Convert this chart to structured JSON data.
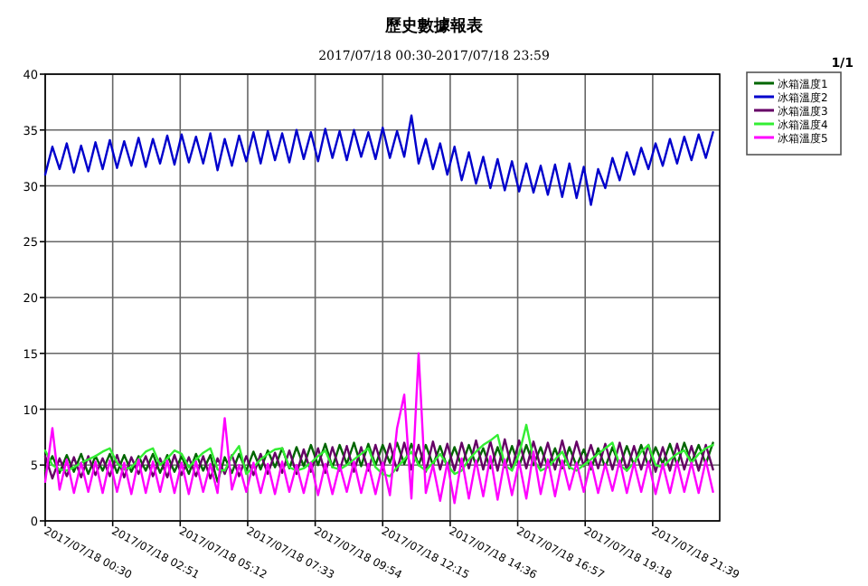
{
  "chart_data": {
    "type": "line",
    "title": "歷史數據報表",
    "subtitle": "2017/07/18 00:30-2017/07/18 23:59",
    "annotations": [
      "1/1"
    ],
    "xlim": [
      "2017-07-18T00:30",
      "2017-07-18T23:59"
    ],
    "xticks": [
      {
        "value": "2017-07-18T00:30",
        "label": "2017/07/18 00:30"
      },
      {
        "value": "2017-07-18T02:51",
        "label": "2017/07/18 02:51"
      },
      {
        "value": "2017-07-18T05:12",
        "label": "2017/07/18 05:12"
      },
      {
        "value": "2017-07-18T07:33",
        "label": "2017/07/18 07:33"
      },
      {
        "value": "2017-07-18T09:54",
        "label": "2017/07/18 09:54"
      },
      {
        "value": "2017-07-18T12:15",
        "label": "2017/07/18 12:15"
      },
      {
        "value": "2017-07-18T14:36",
        "label": "2017/07/18 14:36"
      },
      {
        "value": "2017-07-18T16:57",
        "label": "2017/07/18 16:57"
      },
      {
        "value": "2017-07-18T19:18",
        "label": "2017/07/18 19:18"
      },
      {
        "value": "2017-07-18T21:39",
        "label": "2017/07/18 21:39"
      }
    ],
    "ylim": [
      0,
      40
    ],
    "yticks": [
      0,
      5,
      10,
      15,
      20,
      25,
      30,
      35,
      40
    ],
    "grid": true,
    "legend": "right",
    "x": [
      "2017-07-18T00:30",
      "2017-07-18T00:45",
      "2017-07-18T01:00",
      "2017-07-18T01:15",
      "2017-07-18T01:30",
      "2017-07-18T01:45",
      "2017-07-18T02:00",
      "2017-07-18T02:15",
      "2017-07-18T02:30",
      "2017-07-18T02:45",
      "2017-07-18T03:00",
      "2017-07-18T03:15",
      "2017-07-18T03:30",
      "2017-07-18T03:45",
      "2017-07-18T04:00",
      "2017-07-18T04:15",
      "2017-07-18T04:30",
      "2017-07-18T04:45",
      "2017-07-18T05:00",
      "2017-07-18T05:15",
      "2017-07-18T05:30",
      "2017-07-18T05:45",
      "2017-07-18T06:00",
      "2017-07-18T06:15",
      "2017-07-18T06:30",
      "2017-07-18T06:45",
      "2017-07-18T07:00",
      "2017-07-18T07:15",
      "2017-07-18T07:30",
      "2017-07-18T07:45",
      "2017-07-18T08:00",
      "2017-07-18T08:15",
      "2017-07-18T08:30",
      "2017-07-18T08:45",
      "2017-07-18T09:00",
      "2017-07-18T09:15",
      "2017-07-18T09:30",
      "2017-07-18T09:45",
      "2017-07-18T10:00",
      "2017-07-18T10:15",
      "2017-07-18T10:30",
      "2017-07-18T10:45",
      "2017-07-18T11:00",
      "2017-07-18T11:15",
      "2017-07-18T11:30",
      "2017-07-18T11:45",
      "2017-07-18T12:00",
      "2017-07-18T12:15",
      "2017-07-18T12:30",
      "2017-07-18T12:45",
      "2017-07-18T13:00",
      "2017-07-18T13:15",
      "2017-07-18T13:30",
      "2017-07-18T13:45",
      "2017-07-18T14:00",
      "2017-07-18T14:15",
      "2017-07-18T14:30",
      "2017-07-18T14:45",
      "2017-07-18T15:00",
      "2017-07-18T15:15",
      "2017-07-18T15:30",
      "2017-07-18T15:45",
      "2017-07-18T16:00",
      "2017-07-18T16:15",
      "2017-07-18T16:30",
      "2017-07-18T16:45",
      "2017-07-18T17:00",
      "2017-07-18T17:15",
      "2017-07-18T17:30",
      "2017-07-18T17:45",
      "2017-07-18T18:00",
      "2017-07-18T18:15",
      "2017-07-18T18:30",
      "2017-07-18T18:45",
      "2017-07-18T19:00",
      "2017-07-18T19:15",
      "2017-07-18T19:30",
      "2017-07-18T19:45",
      "2017-07-18T20:00",
      "2017-07-18T20:15",
      "2017-07-18T20:30",
      "2017-07-18T20:45",
      "2017-07-18T21:00",
      "2017-07-18T21:15",
      "2017-07-18T21:30",
      "2017-07-18T21:45",
      "2017-07-18T22:00",
      "2017-07-18T22:15",
      "2017-07-18T22:30",
      "2017-07-18T22:45",
      "2017-07-18T23:00",
      "2017-07-18T23:15",
      "2017-07-18T23:30",
      "2017-07-18T23:45"
    ],
    "series": [
      {
        "name": "冰箱溫度1",
        "color": "#006600",
        "values": [
          4.5,
          5.8,
          4.3,
          5.9,
          4.4,
          6.0,
          4.2,
          5.8,
          4.5,
          6.0,
          4.3,
          5.9,
          4.4,
          5.8,
          4.5,
          6.0,
          4.3,
          5.9,
          4.4,
          5.8,
          4.2,
          6.0,
          4.5,
          5.9,
          3.5,
          5.7,
          4.3,
          6.0,
          4.5,
          6.2,
          4.6,
          6.3,
          4.8,
          6.5,
          4.7,
          6.6,
          4.9,
          6.8,
          5.0,
          6.9,
          4.8,
          6.8,
          5.1,
          7.0,
          4.9,
          6.9,
          5.0,
          6.8,
          5.2,
          7.0,
          5.1,
          6.9,
          5.0,
          6.8,
          5.0,
          6.7,
          4.8,
          6.6,
          4.9,
          6.8,
          5.0,
          6.5,
          4.7,
          6.6,
          4.8,
          6.7,
          4.9,
          6.8,
          5.0,
          6.6,
          4.8,
          6.5,
          4.7,
          6.6,
          4.9,
          6.4,
          4.6,
          6.5,
          4.8,
          6.6,
          4.9,
          6.7,
          5.0,
          6.8,
          4.9,
          6.6,
          5.1,
          6.9,
          5.0,
          7.0,
          5.2,
          6.8,
          5.1,
          7.0
        ]
      },
      {
        "name": "冰箱溫度2",
        "color": "#0000cc",
        "values": [
          31,
          33.5,
          31.5,
          33.8,
          31.2,
          33.6,
          31.3,
          33.9,
          31.5,
          34.1,
          31.6,
          34.0,
          31.8,
          34.3,
          31.7,
          34.2,
          32.0,
          34.5,
          31.9,
          34.6,
          32.1,
          34.4,
          32.0,
          34.7,
          31.4,
          34.2,
          31.8,
          34.5,
          32.2,
          34.8,
          32.0,
          34.9,
          32.3,
          34.7,
          32.1,
          35.0,
          32.4,
          34.8,
          32.2,
          35.1,
          32.5,
          34.9,
          32.3,
          35.0,
          32.6,
          34.8,
          32.4,
          35.2,
          32.5,
          34.9,
          32.6,
          36.3,
          32.0,
          34.2,
          31.5,
          33.8,
          31.0,
          33.5,
          30.5,
          33.0,
          30.2,
          32.6,
          29.8,
          32.4,
          29.6,
          32.2,
          29.5,
          32.0,
          29.4,
          31.8,
          29.2,
          31.9,
          29.0,
          32.0,
          28.9,
          31.7,
          28.3,
          31.5,
          29.8,
          32.5,
          30.5,
          33.0,
          31.0,
          33.4,
          31.5,
          33.8,
          31.8,
          34.2,
          32.0,
          34.4,
          32.3,
          34.6,
          32.5,
          34.8
        ]
      },
      {
        "name": "冰箱溫度3",
        "color": "#660066",
        "values": [
          5.8,
          3.8,
          5.6,
          4.0,
          5.7,
          3.9,
          5.8,
          4.1,
          5.6,
          4.0,
          5.9,
          3.9,
          5.7,
          4.2,
          5.8,
          4.0,
          5.6,
          3.9,
          5.9,
          4.1,
          5.7,
          4.0,
          5.8,
          3.8,
          5.6,
          4.2,
          5.9,
          4.0,
          5.8,
          4.1,
          6.0,
          4.2,
          6.1,
          4.3,
          6.3,
          4.2,
          6.4,
          4.4,
          6.5,
          4.3,
          6.6,
          4.5,
          6.7,
          4.4,
          6.6,
          4.5,
          6.8,
          4.6,
          6.9,
          4.5,
          7.0,
          4.6,
          6.8,
          4.4,
          7.1,
          4.6,
          6.9,
          4.5,
          7.0,
          4.7,
          7.2,
          4.6,
          7.1,
          4.5,
          7.3,
          4.6,
          7.2,
          4.7,
          7.1,
          4.8,
          7.0,
          4.6,
          7.2,
          4.7,
          7.1,
          4.9,
          6.8,
          4.7,
          6.9,
          4.6,
          7.0,
          4.5,
          6.7,
          4.6,
          6.8,
          4.4,
          6.6,
          4.5,
          6.9,
          4.6,
          6.7,
          4.5,
          6.8,
          4.6
        ]
      },
      {
        "name": "冰箱溫度4",
        "color": "#33ee33",
        "values": [
          6.3,
          5.0,
          4.6,
          4.5,
          4.8,
          5.2,
          5.5,
          5.8,
          6.2,
          6.5,
          5.2,
          4.6,
          4.8,
          5.5,
          6.2,
          6.5,
          5.0,
          5.6,
          6.3,
          6.0,
          4.8,
          5.5,
          6.1,
          6.5,
          4.6,
          4.5,
          5.8,
          6.7,
          4.2,
          4.8,
          5.5,
          6.0,
          6.4,
          6.5,
          4.8,
          4.5,
          4.7,
          5.2,
          5.8,
          6.3,
          4.8,
          4.6,
          5.0,
          5.5,
          6.0,
          6.5,
          4.8,
          4.2,
          4.0,
          4.8,
          5.5,
          6.2,
          5.0,
          4.5,
          5.2,
          6.0,
          5.0,
          4.2,
          4.5,
          5.5,
          6.2,
          6.8,
          7.2,
          7.7,
          5.0,
          4.5,
          6.0,
          8.6,
          5.5,
          4.5,
          4.8,
          5.5,
          6.2,
          4.8,
          4.5,
          5.0,
          5.5,
          6.0,
          6.5,
          7.0,
          5.0,
          4.5,
          5.2,
          6.2,
          6.8,
          5.0,
          4.8,
          5.5,
          6.0,
          6.3,
          5.2,
          6.0,
          6.5,
          6.8
        ]
      },
      {
        "name": "冰箱溫度5",
        "color": "#ff00ff",
        "values": [
          3.5,
          8.3,
          2.8,
          5.5,
          2.5,
          5.2,
          2.6,
          5.3,
          2.5,
          5.4,
          2.6,
          5.2,
          2.4,
          5.5,
          2.5,
          5.3,
          2.6,
          5.4,
          2.5,
          5.2,
          2.4,
          5.3,
          2.6,
          5.1,
          2.5,
          9.2,
          2.8,
          5.0,
          2.6,
          5.2,
          2.5,
          5.1,
          2.4,
          5.3,
          2.6,
          5.0,
          2.5,
          5.2,
          2.3,
          5.1,
          2.4,
          5.0,
          2.6,
          5.3,
          2.5,
          5.1,
          2.4,
          5.2,
          2.3,
          8.3,
          11.3,
          2.0,
          15.0,
          2.5,
          5.0,
          1.8,
          5.2,
          1.6,
          5.6,
          2.0,
          5.4,
          2.2,
          5.8,
          1.9,
          5.5,
          2.3,
          5.3,
          2.0,
          6.2,
          2.4,
          5.5,
          2.2,
          5.4,
          2.8,
          5.2,
          2.6,
          5.3,
          2.5,
          5.1,
          2.7,
          5.4,
          2.5,
          5.2,
          2.6,
          5.3,
          2.4,
          5.1,
          2.5,
          5.3,
          2.6,
          5.2,
          2.5,
          5.4,
          2.6
        ]
      }
    ]
  }
}
